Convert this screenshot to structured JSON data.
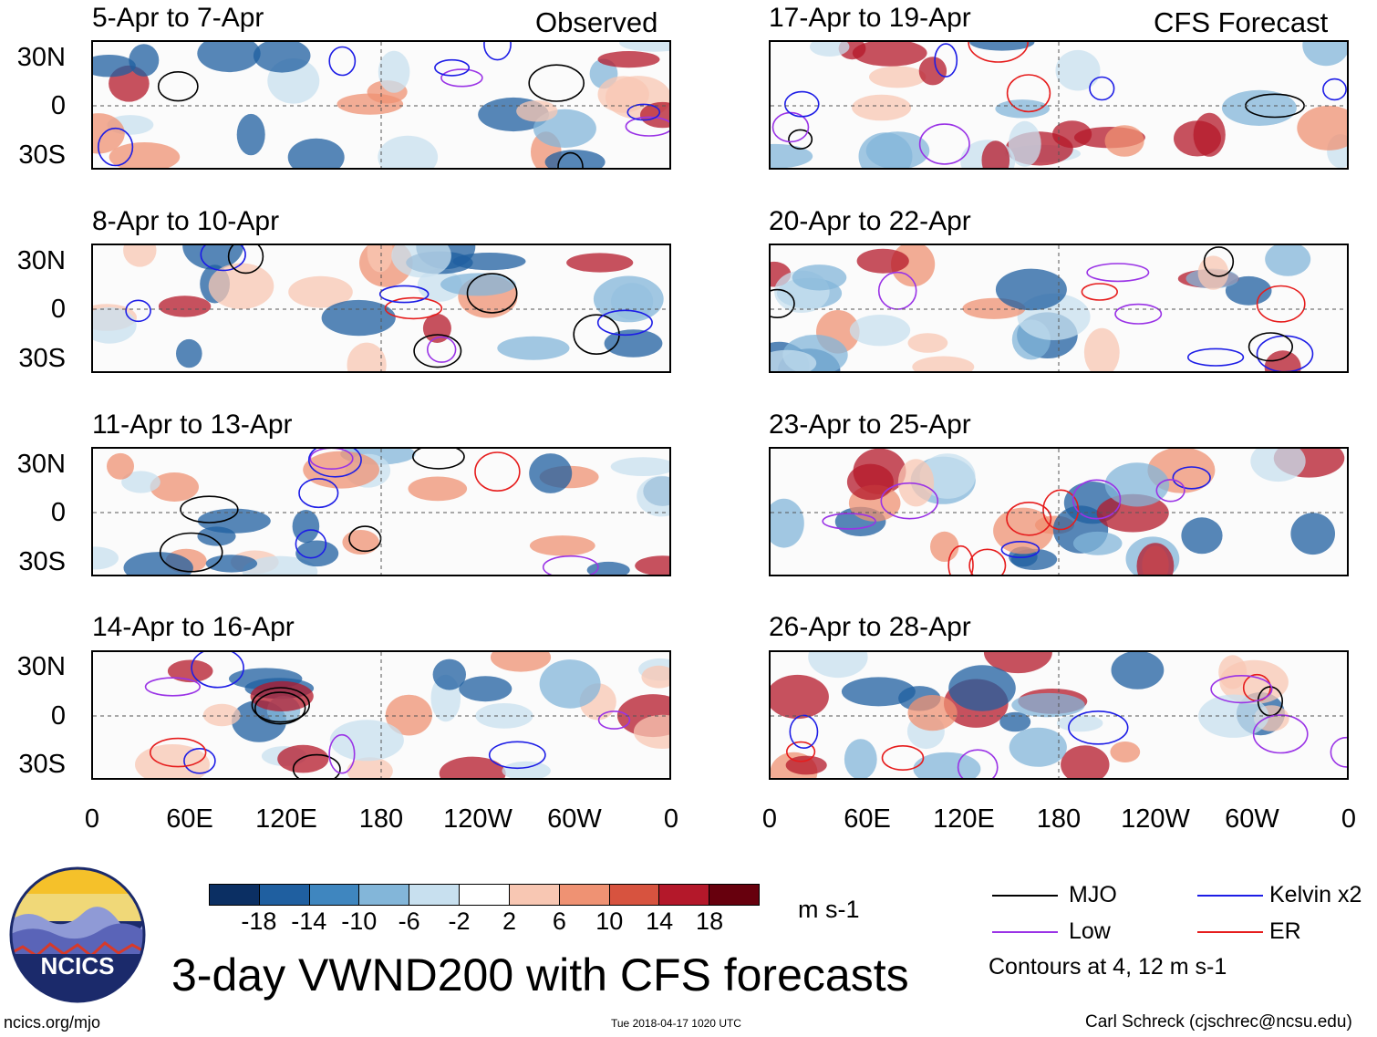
{
  "header": {
    "observed_label": "Observed",
    "forecast_label": "CFS Forecast"
  },
  "panels_observed": [
    {
      "title": "5-Apr to 7-Apr"
    },
    {
      "title": "8-Apr to 10-Apr"
    },
    {
      "title": "11-Apr to 13-Apr"
    },
    {
      "title": "14-Apr to 16-Apr"
    }
  ],
  "panels_forecast": [
    {
      "title": "17-Apr to 19-Apr"
    },
    {
      "title": "20-Apr to 22-Apr"
    },
    {
      "title": "23-Apr to 25-Apr"
    },
    {
      "title": "26-Apr to 28-Apr"
    }
  ],
  "axes": {
    "lat_labels": [
      "30N",
      "0",
      "30S"
    ],
    "lon_labels": [
      "0",
      "60E",
      "120E",
      "180",
      "120W",
      "60W",
      "0"
    ]
  },
  "colorbar": {
    "tick_labels": [
      "-18",
      "-14",
      "-10",
      "-6",
      "-2",
      "2",
      "6",
      "10",
      "14",
      "18"
    ],
    "units": "m s-1",
    "colors": [
      "#0b2f63",
      "#1f5fa0",
      "#3f86bf",
      "#83b6d9",
      "#c8e0ef",
      "#ffffff",
      "#f8c7b3",
      "#ef9273",
      "#d7533f",
      "#b4182a",
      "#67000d"
    ]
  },
  "legend": {
    "items": [
      {
        "label": "MJO",
        "color": "#000000"
      },
      {
        "label": "Kelvin x2",
        "color": "#1d1de6"
      },
      {
        "label": "Low",
        "color": "#9a33e6"
      },
      {
        "label": "ER",
        "color": "#e61d1d"
      }
    ],
    "note": "Contours at 4, 12 m s-1"
  },
  "footer": {
    "main_title": "3-day VWND200 with CFS forecasts",
    "logo_text": "NCICS",
    "url": "ncics.org/mjo",
    "timestamp": "Tue 2018-04-17 1020 UTC",
    "author": "Carl Schreck (cjschrec@ncsu.edu)"
  }
}
